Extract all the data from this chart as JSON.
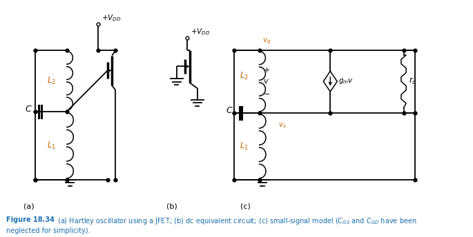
{
  "fig_width": 6.85,
  "fig_height": 3.44,
  "dpi": 100,
  "bg_color": "#ffffff",
  "line_color": "#000000",
  "label_color_blue": "#1a6faf",
  "label_color_orange": "#c86400",
  "sub_labels": [
    "(a)",
    "(b)",
    "(c)"
  ]
}
